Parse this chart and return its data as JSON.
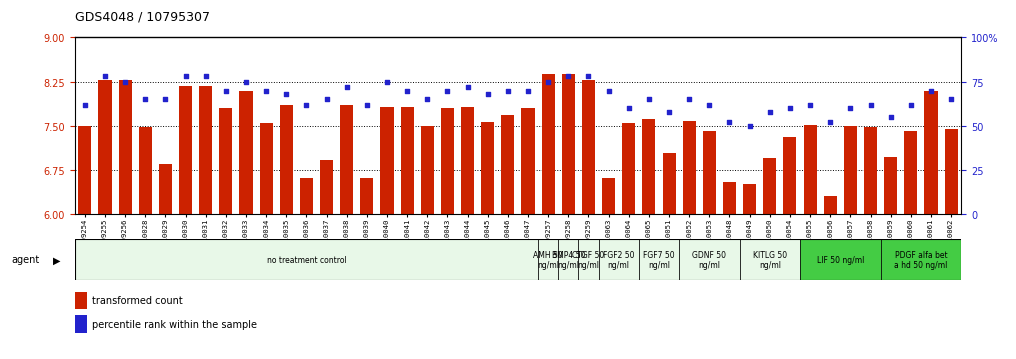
{
  "title": "GDS4048 / 10795307",
  "categories": [
    "GSM509254",
    "GSM509255",
    "GSM509256",
    "GSM510028",
    "GSM510029",
    "GSM510030",
    "GSM510031",
    "GSM510032",
    "GSM510033",
    "GSM510034",
    "GSM510035",
    "GSM510036",
    "GSM510037",
    "GSM510038",
    "GSM510039",
    "GSM510040",
    "GSM510041",
    "GSM510042",
    "GSM510043",
    "GSM510044",
    "GSM510045",
    "GSM510046",
    "GSM510047",
    "GSM509257",
    "GSM509258",
    "GSM509259",
    "GSM510063",
    "GSM510064",
    "GSM510065",
    "GSM510051",
    "GSM510052",
    "GSM510053",
    "GSM510048",
    "GSM510049",
    "GSM510050",
    "GSM510054",
    "GSM510055",
    "GSM510056",
    "GSM510057",
    "GSM510058",
    "GSM510059",
    "GSM510060",
    "GSM510061",
    "GSM510062"
  ],
  "bar_values": [
    7.5,
    8.28,
    8.28,
    7.48,
    6.85,
    8.18,
    8.18,
    7.8,
    8.1,
    7.55,
    7.85,
    6.62,
    6.92,
    7.85,
    6.62,
    7.82,
    7.82,
    7.5,
    7.8,
    7.82,
    7.57,
    7.68,
    7.8,
    8.38,
    8.38,
    8.28,
    6.62,
    7.55,
    7.62,
    7.05,
    7.58,
    7.42,
    6.55,
    6.52,
    6.95,
    7.32,
    7.52,
    6.32,
    7.5,
    7.48,
    6.98,
    7.42,
    8.1,
    7.45
  ],
  "scatter_values": [
    62,
    78,
    75,
    65,
    65,
    78,
    78,
    70,
    75,
    70,
    68,
    62,
    65,
    72,
    62,
    75,
    70,
    65,
    70,
    72,
    68,
    70,
    70,
    75,
    78,
    78,
    70,
    60,
    65,
    58,
    65,
    62,
    52,
    50,
    58,
    60,
    62,
    52,
    60,
    62,
    55,
    62,
    70,
    65
  ],
  "ylim": [
    6,
    9
  ],
  "y2lim": [
    0,
    100
  ],
  "yticks": [
    6,
    6.75,
    7.5,
    8.25,
    9
  ],
  "y2ticks": [
    0,
    25,
    50,
    75,
    100
  ],
  "bar_color": "#cc2200",
  "scatter_color": "#2222cc",
  "agent_groups": [
    {
      "label": "no treatment control",
      "start": 0,
      "end": 22,
      "color": "#e8f8e8"
    },
    {
      "label": "AMH 50\nng/ml",
      "start": 23,
      "end": 23,
      "color": "#e8f8e8"
    },
    {
      "label": "BMP4 50\nng/ml",
      "start": 24,
      "end": 24,
      "color": "#e8f8e8"
    },
    {
      "label": "CTGF 50\nng/ml",
      "start": 25,
      "end": 25,
      "color": "#e8f8e8"
    },
    {
      "label": "FGF2 50\nng/ml",
      "start": 26,
      "end": 27,
      "color": "#e8f8e8"
    },
    {
      "label": "FGF7 50\nng/ml",
      "start": 28,
      "end": 29,
      "color": "#e8f8e8"
    },
    {
      "label": "GDNF 50\nng/ml",
      "start": 30,
      "end": 32,
      "color": "#e8f8e8"
    },
    {
      "label": "KITLG 50\nng/ml",
      "start": 33,
      "end": 35,
      "color": "#e8f8e8"
    },
    {
      "label": "LIF 50 ng/ml",
      "start": 36,
      "end": 39,
      "color": "#44cc44"
    },
    {
      "label": "PDGF alfa bet\na hd 50 ng/ml",
      "start": 40,
      "end": 43,
      "color": "#44cc44"
    }
  ]
}
